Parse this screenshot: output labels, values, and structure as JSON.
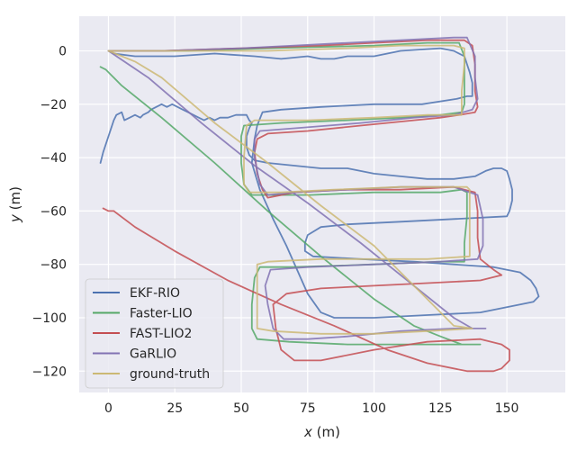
{
  "chart_data": {
    "type": "line",
    "title": "",
    "xlabel_var": "x",
    "xlabel_unit": "(m)",
    "ylabel_var": "y",
    "ylabel_unit": "(m)",
    "xlim": [
      -11,
      172
    ],
    "ylim": [
      -128,
      13
    ],
    "xticks": [
      0,
      25,
      50,
      75,
      100,
      125,
      150
    ],
    "yticks": [
      0,
      -20,
      -40,
      -60,
      -80,
      -100,
      -120
    ],
    "grid": true,
    "legend_position": "lower-left",
    "colors": {
      "background": "#eaeaf2",
      "grid": "#ffffff",
      "text": "#262626"
    },
    "series": [
      {
        "name": "EKF-RIO",
        "color": "#4c72b0",
        "points": [
          [
            -3,
            -42
          ],
          [
            -2,
            -38
          ],
          [
            0,
            -32
          ],
          [
            2,
            -26
          ],
          [
            3,
            -24
          ],
          [
            5,
            -23
          ],
          [
            6,
            -26
          ],
          [
            8,
            -25
          ],
          [
            10,
            -24
          ],
          [
            12,
            -25
          ],
          [
            13,
            -24
          ],
          [
            15,
            -23
          ],
          [
            16,
            -22
          ],
          [
            18,
            -21
          ],
          [
            20,
            -20
          ],
          [
            22,
            -21
          ],
          [
            24,
            -20
          ],
          [
            26,
            -21
          ],
          [
            28,
            -22
          ],
          [
            30,
            -23
          ],
          [
            32,
            -24
          ],
          [
            34,
            -25
          ],
          [
            36,
            -26
          ],
          [
            38,
            -25
          ],
          [
            40,
            -26
          ],
          [
            42,
            -25
          ],
          [
            45,
            -25
          ],
          [
            48,
            -24
          ],
          [
            50,
            -24
          ],
          [
            52,
            -24
          ],
          [
            53,
            -26
          ],
          [
            54,
            -27
          ],
          [
            53,
            -29
          ],
          [
            52,
            -32
          ],
          [
            52,
            -36
          ],
          [
            53,
            -39
          ],
          [
            55,
            -41
          ],
          [
            60,
            -42
          ],
          [
            70,
            -43
          ],
          [
            80,
            -44
          ],
          [
            90,
            -44
          ],
          [
            100,
            -46
          ],
          [
            110,
            -47
          ],
          [
            120,
            -48
          ],
          [
            130,
            -48
          ],
          [
            138,
            -47
          ],
          [
            142,
            -45
          ],
          [
            145,
            -44
          ],
          [
            148,
            -44
          ],
          [
            150,
            -45
          ],
          [
            151,
            -48
          ],
          [
            152,
            -52
          ],
          [
            152,
            -56
          ],
          [
            151,
            -60
          ],
          [
            150,
            -62
          ],
          [
            130,
            -63
          ],
          [
            110,
            -64
          ],
          [
            90,
            -65
          ],
          [
            80,
            -66
          ],
          [
            75,
            -69
          ],
          [
            74,
            -72
          ],
          [
            74,
            -75
          ],
          [
            77,
            -77
          ],
          [
            95,
            -78
          ],
          [
            115,
            -79
          ],
          [
            130,
            -80
          ],
          [
            145,
            -81
          ],
          [
            155,
            -83
          ],
          [
            159,
            -86
          ],
          [
            161,
            -89
          ],
          [
            162,
            -92
          ],
          [
            160,
            -94
          ],
          [
            155,
            -95
          ],
          [
            140,
            -98
          ],
          [
            120,
            -99
          ],
          [
            100,
            -100
          ],
          [
            85,
            -100
          ],
          [
            80,
            -98
          ],
          [
            75,
            -91
          ],
          [
            71,
            -82
          ],
          [
            67,
            -73
          ],
          [
            62,
            -63
          ],
          [
            57,
            -52
          ],
          [
            54,
            -42
          ],
          [
            55,
            -33
          ],
          [
            56,
            -28
          ],
          [
            58,
            -23
          ],
          [
            65,
            -22
          ],
          [
            80,
            -21
          ],
          [
            100,
            -20
          ],
          [
            118,
            -20
          ],
          [
            131,
            -18
          ],
          [
            135,
            -17
          ],
          [
            137,
            -17
          ],
          [
            137,
            -12
          ],
          [
            136,
            -8
          ],
          [
            134,
            -2
          ],
          [
            130,
            0
          ],
          [
            125,
            1
          ],
          [
            110,
            0
          ],
          [
            105,
            -1
          ],
          [
            100,
            -2
          ],
          [
            90,
            -2
          ],
          [
            85,
            -3
          ],
          [
            80,
            -3
          ],
          [
            75,
            -2
          ],
          [
            65,
            -3
          ],
          [
            55,
            -2
          ],
          [
            40,
            -1
          ],
          [
            25,
            -2
          ],
          [
            10,
            -2
          ],
          [
            2,
            -1
          ],
          [
            0,
            0
          ]
        ]
      },
      {
        "name": "Faster-LIO",
        "color": "#55a868",
        "points": [
          [
            -3,
            -6
          ],
          [
            -1,
            -7
          ],
          [
            1,
            -9
          ],
          [
            5,
            -13
          ],
          [
            20,
            -25
          ],
          [
            40,
            -42
          ],
          [
            60,
            -60
          ],
          [
            80,
            -77
          ],
          [
            100,
            -93
          ],
          [
            115,
            -103
          ],
          [
            125,
            -107
          ],
          [
            133,
            -110
          ],
          [
            140,
            -110
          ],
          [
            118,
            -110
          ],
          [
            90,
            -110
          ],
          [
            68,
            -109
          ],
          [
            56,
            -108
          ],
          [
            54,
            -104
          ],
          [
            54,
            -95
          ],
          [
            55,
            -85
          ],
          [
            57,
            -81
          ],
          [
            70,
            -81
          ],
          [
            100,
            -80
          ],
          [
            125,
            -79
          ],
          [
            134,
            -79
          ],
          [
            134,
            -72
          ],
          [
            135,
            -62
          ],
          [
            135,
            -53
          ],
          [
            133,
            -52
          ],
          [
            125,
            -53
          ],
          [
            100,
            -53
          ],
          [
            76,
            -54
          ],
          [
            54,
            -54
          ],
          [
            51,
            -50
          ],
          [
            50,
            -42
          ],
          [
            50,
            -32
          ],
          [
            51,
            -28
          ],
          [
            65,
            -27
          ],
          [
            90,
            -26
          ],
          [
            110,
            -25
          ],
          [
            125,
            -24
          ],
          [
            133,
            -23
          ],
          [
            134,
            -20
          ],
          [
            134,
            -10
          ],
          [
            134,
            -2
          ],
          [
            132,
            3
          ],
          [
            120,
            3
          ],
          [
            100,
            2
          ],
          [
            60,
            1
          ],
          [
            30,
            0
          ],
          [
            5,
            0
          ],
          [
            0,
            0
          ]
        ]
      },
      {
        "name": "FAST-LIO2",
        "color": "#c44e52",
        "points": [
          [
            -2,
            -59
          ],
          [
            0,
            -60
          ],
          [
            2,
            -60
          ],
          [
            10,
            -66
          ],
          [
            25,
            -75
          ],
          [
            45,
            -86
          ],
          [
            65,
            -95
          ],
          [
            85,
            -103
          ],
          [
            105,
            -112
          ],
          [
            120,
            -117
          ],
          [
            135,
            -120
          ],
          [
            145,
            -120
          ],
          [
            148,
            -119
          ],
          [
            151,
            -116
          ],
          [
            151,
            -112
          ],
          [
            148,
            -110
          ],
          [
            140,
            -108
          ],
          [
            120,
            -109
          ],
          [
            100,
            -112
          ],
          [
            80,
            -116
          ],
          [
            70,
            -116
          ],
          [
            65,
            -112
          ],
          [
            63,
            -104
          ],
          [
            62,
            -95
          ],
          [
            67,
            -91
          ],
          [
            80,
            -89
          ],
          [
            100,
            -88
          ],
          [
            120,
            -87
          ],
          [
            140,
            -86
          ],
          [
            148,
            -84
          ],
          [
            145,
            -82
          ],
          [
            140,
            -78
          ],
          [
            139,
            -70
          ],
          [
            139,
            -60
          ],
          [
            138,
            -53
          ],
          [
            130,
            -51
          ],
          [
            110,
            -52
          ],
          [
            90,
            -52
          ],
          [
            70,
            -53
          ],
          [
            60,
            -55
          ],
          [
            58,
            -52
          ],
          [
            56,
            -46
          ],
          [
            55,
            -38
          ],
          [
            56,
            -33
          ],
          [
            60,
            -31
          ],
          [
            75,
            -30
          ],
          [
            95,
            -28
          ],
          [
            115,
            -26
          ],
          [
            125,
            -25
          ],
          [
            132,
            -24
          ],
          [
            138,
            -23
          ],
          [
            139,
            -21
          ],
          [
            138,
            -15
          ],
          [
            138,
            -5
          ],
          [
            137,
            2
          ],
          [
            134,
            4
          ],
          [
            120,
            4
          ],
          [
            100,
            3
          ],
          [
            80,
            2
          ],
          [
            50,
            1
          ],
          [
            20,
            0
          ],
          [
            0,
            0
          ]
        ]
      },
      {
        "name": "GaRLIO",
        "color": "#8172b3",
        "points": [
          [
            0,
            0
          ],
          [
            15,
            -10
          ],
          [
            35,
            -27
          ],
          [
            55,
            -43
          ],
          [
            75,
            -57
          ],
          [
            95,
            -72
          ],
          [
            115,
            -88
          ],
          [
            130,
            -100
          ],
          [
            137,
            -104
          ],
          [
            142,
            -104
          ],
          [
            130,
            -104
          ],
          [
            110,
            -105
          ],
          [
            90,
            -107
          ],
          [
            75,
            -108
          ],
          [
            66,
            -108
          ],
          [
            62,
            -104
          ],
          [
            60,
            -95
          ],
          [
            59,
            -88
          ],
          [
            61,
            -82
          ],
          [
            75,
            -81
          ],
          [
            100,
            -80
          ],
          [
            125,
            -79
          ],
          [
            139,
            -78
          ],
          [
            141,
            -73
          ],
          [
            141,
            -63
          ],
          [
            139,
            -54
          ],
          [
            130,
            -51
          ],
          [
            110,
            -51
          ],
          [
            90,
            -52
          ],
          [
            70,
            -53
          ],
          [
            60,
            -54
          ],
          [
            57,
            -50
          ],
          [
            55,
            -40
          ],
          [
            55,
            -33
          ],
          [
            57,
            -30
          ],
          [
            70,
            -29
          ],
          [
            95,
            -27
          ],
          [
            115,
            -25
          ],
          [
            130,
            -24
          ],
          [
            137,
            -22
          ],
          [
            139,
            -18
          ],
          [
            138,
            -10
          ],
          [
            138,
            -2
          ],
          [
            135,
            5
          ],
          [
            130,
            5
          ],
          [
            110,
            4
          ],
          [
            90,
            3
          ],
          [
            70,
            2
          ],
          [
            50,
            1
          ],
          [
            20,
            0
          ],
          [
            0,
            0
          ]
        ]
      },
      {
        "name": "ground-truth",
        "color": "#ccb974",
        "points": [
          [
            0,
            0
          ],
          [
            10,
            -4
          ],
          [
            20,
            -10
          ],
          [
            40,
            -27
          ],
          [
            60,
            -42
          ],
          [
            80,
            -58
          ],
          [
            100,
            -73
          ],
          [
            117,
            -90
          ],
          [
            130,
            -103
          ],
          [
            137,
            -104
          ],
          [
            120,
            -105
          ],
          [
            100,
            -106
          ],
          [
            80,
            -106
          ],
          [
            62,
            -105
          ],
          [
            56,
            -104
          ],
          [
            56,
            -90
          ],
          [
            56,
            -80
          ],
          [
            60,
            -79
          ],
          [
            80,
            -78
          ],
          [
            100,
            -78
          ],
          [
            120,
            -78
          ],
          [
            136,
            -77
          ],
          [
            136,
            -65
          ],
          [
            136,
            -52
          ],
          [
            135,
            -51
          ],
          [
            110,
            -51
          ],
          [
            85,
            -52
          ],
          [
            65,
            -53
          ],
          [
            53,
            -53
          ],
          [
            51,
            -50
          ],
          [
            51,
            -40
          ],
          [
            52,
            -28
          ],
          [
            55,
            -26
          ],
          [
            75,
            -26
          ],
          [
            100,
            -25
          ],
          [
            120,
            -24
          ],
          [
            133,
            -24
          ],
          [
            133,
            -15
          ],
          [
            134,
            -5
          ],
          [
            134,
            1
          ],
          [
            130,
            2
          ],
          [
            110,
            2
          ],
          [
            90,
            1
          ],
          [
            60,
            0
          ],
          [
            30,
            0
          ],
          [
            0,
            0
          ]
        ]
      }
    ]
  }
}
